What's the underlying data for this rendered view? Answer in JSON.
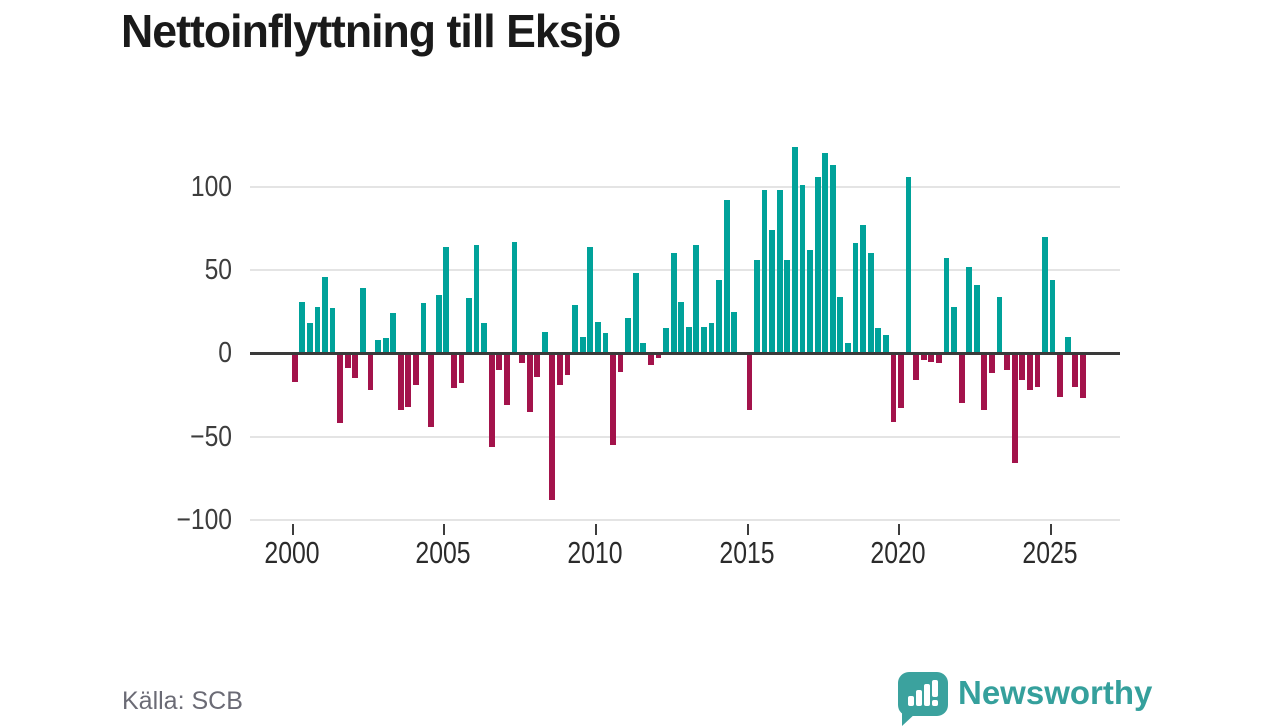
{
  "title": "Nettoinflyttning till Eksjö",
  "source_note": "Källa: SCB",
  "branding": {
    "name": "Newsworthy",
    "logo_icon": "bar-chart-speech-bubble"
  },
  "colors": {
    "positive_bar": "#00a29a",
    "negative_bar": "#a3134b",
    "gridline": "#e4e4e4",
    "zero_line": "#3a3a3a",
    "axis_text": "#3d3d3d",
    "title_text": "#1a1a1a",
    "source_text": "#6b6b75",
    "brand_teal": "#35a09c"
  },
  "chart_data": {
    "type": "bar",
    "title": "Nettoinflyttning till Eksjö",
    "frequency": "quarterly",
    "start_period": "2000-Q1",
    "end_period": "2026-Q1",
    "ylabel": "",
    "xlabel": "",
    "ylim": [
      -100,
      125
    ],
    "grid": true,
    "y_ticks": [
      100,
      50,
      0,
      -50,
      -100
    ],
    "y_tick_labels": [
      "100",
      "50",
      "0",
      "−50",
      "−100"
    ],
    "x_tick_years": [
      2000,
      2005,
      2010,
      2015,
      2020,
      2025
    ],
    "x_tick_labels": [
      "2000",
      "2005",
      "2010",
      "2015",
      "2020",
      "2025"
    ],
    "values": [
      -17,
      31,
      18,
      28,
      46,
      27,
      -42,
      -9,
      -15,
      39,
      -22,
      8,
      9,
      24,
      -34,
      -32,
      -19,
      30,
      -44,
      35,
      64,
      -21,
      -18,
      33,
      65,
      18,
      -56,
      -10,
      -31,
      67,
      -6,
      -35,
      -14,
      13,
      -88,
      -19,
      -13,
      29,
      10,
      64,
      19,
      12,
      -55,
      -11,
      21,
      48,
      6,
      -7,
      -3,
      15,
      60,
      31,
      16,
      65,
      16,
      18,
      44,
      92,
      25,
      0,
      -34,
      56,
      98,
      74,
      98,
      56,
      124,
      101,
      62,
      106,
      120,
      113,
      34,
      6,
      66,
      77,
      60,
      15,
      11,
      -41,
      -33,
      106,
      -16,
      -4,
      -5,
      -6,
      57,
      28,
      -30,
      52,
      41,
      -34,
      -12,
      34,
      -10,
      -66,
      -16,
      -22,
      -20,
      70,
      44,
      -26,
      10,
      -20,
      -27
    ]
  }
}
